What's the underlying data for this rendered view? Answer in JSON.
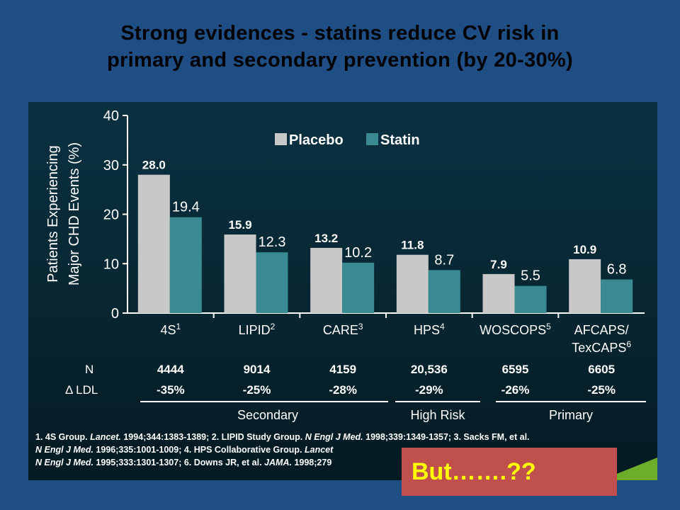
{
  "slide": {
    "title_line1": "Strong evidences - statins reduce CV risk in",
    "title_line2": "primary and secondary prevention (by 20-30%)",
    "callout": "But…….??"
  },
  "chart_data": {
    "type": "bar",
    "ylabel_line1": "Patients Experiencing",
    "ylabel_line2": "Major CHD Events (%)",
    "ylim": [
      0,
      40
    ],
    "yticks": [
      0,
      10,
      20,
      30,
      40
    ],
    "categories": [
      {
        "name": "4S",
        "sup": "1"
      },
      {
        "name": "LIPID",
        "sup": "2"
      },
      {
        "name": "CARE",
        "sup": "3"
      },
      {
        "name": "HPS",
        "sup": "4"
      },
      {
        "name": "WOSCOPS",
        "sup": "5"
      },
      {
        "name": "AFCAPS/",
        "name2": "TexCAPS",
        "sup": "6"
      }
    ],
    "series": [
      {
        "name": "Placebo",
        "color": "#c8c8c8",
        "values": [
          28.0,
          15.9,
          13.2,
          11.8,
          7.9,
          10.9
        ],
        "labels": [
          "28.0",
          "15.9",
          "13.2",
          "11.8",
          "7.9",
          "10.9"
        ]
      },
      {
        "name": "Statin",
        "color": "#3a8a92",
        "values": [
          19.4,
          12.3,
          10.2,
          8.7,
          5.5,
          6.8
        ],
        "labels": [
          "19.4",
          "12.3",
          "10.2",
          "8.7",
          "5.5",
          "6.8"
        ]
      }
    ],
    "legend_position": "top"
  },
  "stats": {
    "n_label": "N",
    "ldl_label": "Δ LDL",
    "n_values": [
      "4444",
      "9014",
      "4159",
      "20,536",
      "6595",
      "6605"
    ],
    "ldl_values": [
      "-35%",
      "-25%",
      "-28%",
      "-29%",
      "-26%",
      "-25%"
    ],
    "groups": [
      "Secondary",
      "High Risk",
      "Primary"
    ]
  },
  "references": {
    "r1a": "1. 4S Group. ",
    "r1b": "Lancet.",
    "r1c": " 1994;344:1383-1389; 2. LIPID Study Group. ",
    "r1d": "N Engl J Med.",
    "r1e": " 1998;339:1349-1357; 3. Sacks FM, et al.",
    "r2a": "N Engl J Med.",
    "r2b": " 1996;335:1001-1009; 4. HPS Collaborative Group. ",
    "r2c": "Lancet",
    "r3a": "N Engl J Med.",
    "r3b": " 1995;333:1301-1307; 6. Downs JR, et al. ",
    "r3c": "JAMA.",
    "r3d": " 1998;279"
  }
}
